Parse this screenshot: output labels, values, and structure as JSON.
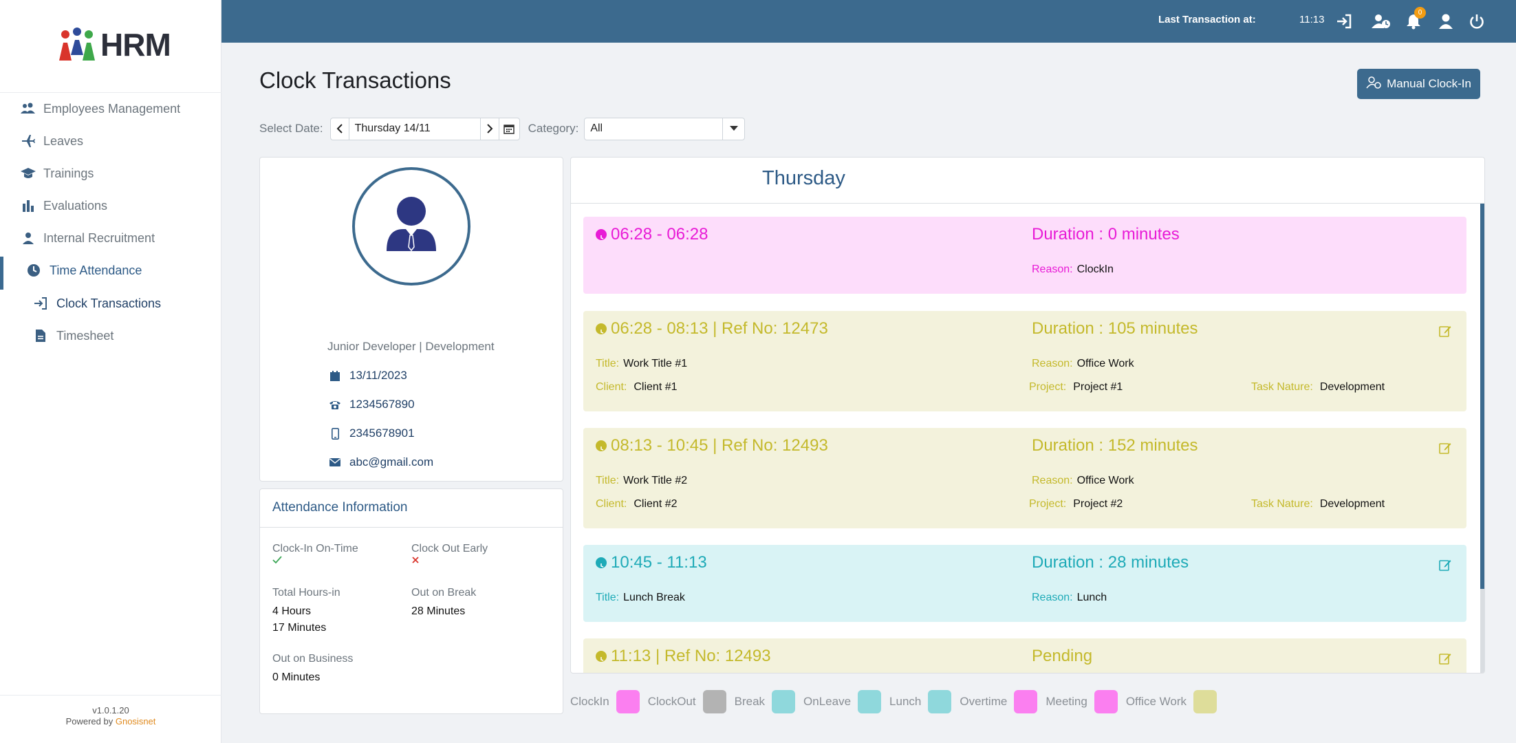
{
  "app": {
    "logo_text": "HRM",
    "version": "v1.0.1.20",
    "powered_prefix": "Powered by",
    "powered_brand": "Gnosisnet"
  },
  "sidebar": {
    "items": [
      {
        "label": "Employees Management",
        "icon": "users-icon"
      },
      {
        "label": "Leaves",
        "icon": "plane-icon"
      },
      {
        "label": "Trainings",
        "icon": "graduation-cap-icon"
      },
      {
        "label": "Evaluations",
        "icon": "bar-chart-icon"
      },
      {
        "label": "Internal Recruitment",
        "icon": "user-tie-icon"
      },
      {
        "label": "Time Attendance",
        "icon": "clock-icon"
      },
      {
        "label": "Clock Transactions",
        "icon": "sign-in-icon"
      },
      {
        "label": "Timesheet",
        "icon": "file-icon"
      }
    ]
  },
  "topbar": {
    "last_transaction_label": "Last Transaction at:",
    "last_transaction_time": "11:13",
    "notification_count": "0"
  },
  "page": {
    "title": "Clock Transactions",
    "manual_clock_in_label": "Manual Clock-In"
  },
  "filters": {
    "date_label": "Select Date:",
    "date_value": "Thursday 14/11",
    "category_label": "Category:",
    "category_value": "All"
  },
  "profile": {
    "job": "Junior Developer | Development",
    "date": "13/11/2023",
    "phone": "1234567890",
    "mobile": "2345678901",
    "email": "abc@gmail.com"
  },
  "attendance": {
    "title": "Attendance Information",
    "clock_in_on_time_label": "Clock-In On-Time",
    "clock_out_early_label": "Clock Out Early",
    "total_hours_label": "Total Hours-in",
    "total_hours_value_1": "4 Hours",
    "total_hours_value_2": "17 Minutes",
    "out_on_break_label": "Out on Break",
    "out_on_break_value": "28 Minutes",
    "out_on_business_label": "Out on Business",
    "out_on_business_value": "0 Minutes"
  },
  "timeline": {
    "day": "Thursday",
    "transactions": [
      {
        "time": "06:28 - 06:28",
        "duration": "Duration : 0 minutes",
        "reason_label": "Reason:",
        "reason": "ClockIn"
      },
      {
        "time": "06:28 - 08:13 | Ref No: 12473",
        "duration": "Duration : 105 minutes",
        "title_label": "Title:",
        "title": "Work Title #1",
        "reason_label": "Reason:",
        "reason": "Office Work",
        "client_label": "Client:",
        "client": "Client #1",
        "project_label": "Project:",
        "project": "Project #1",
        "task_label": "Task Nature:",
        "task": "Development"
      },
      {
        "time": "08:13 - 10:45 | Ref No: 12493",
        "duration": "Duration : 152 minutes",
        "title_label": "Title:",
        "title": "Work Title #2",
        "reason_label": "Reason:",
        "reason": "Office Work",
        "client_label": "Client:",
        "client": "Client #2",
        "project_label": "Project:",
        "project": "Project #2",
        "task_label": "Task Nature:",
        "task": "Development"
      },
      {
        "time": "10:45 - 11:13",
        "duration": "Duration : 28 minutes",
        "title_label": "Title:",
        "title": "Lunch Break",
        "reason_label": "Reason:",
        "reason": "Lunch"
      },
      {
        "time": "11:13 | Ref No: 12493",
        "duration": "Pending"
      }
    ]
  },
  "legend": [
    {
      "label": "ClockIn",
      "color": "#fb7ff0"
    },
    {
      "label": "ClockOut",
      "color": "#b3b3b3"
    },
    {
      "label": "Break",
      "color": "#8fd8dc"
    },
    {
      "label": "OnLeave",
      "color": "#8fd8dc"
    },
    {
      "label": "Lunch",
      "color": "#8fd8dc"
    },
    {
      "label": "Overtime",
      "color": "#fb7ff0"
    },
    {
      "label": "Meeting",
      "color": "#fb7ff0"
    },
    {
      "label": "Office Work",
      "color": "#dedd9a"
    }
  ],
  "colors": {
    "primary": "#3c6a8e",
    "clockin_bg": "#fdddfb",
    "clockin_fg": "#e81bd6",
    "office_bg": "#f3f2dc",
    "office_fg": "#c4b92b",
    "lunch_bg": "#d9f3f5",
    "lunch_fg": "#1eaab7"
  }
}
